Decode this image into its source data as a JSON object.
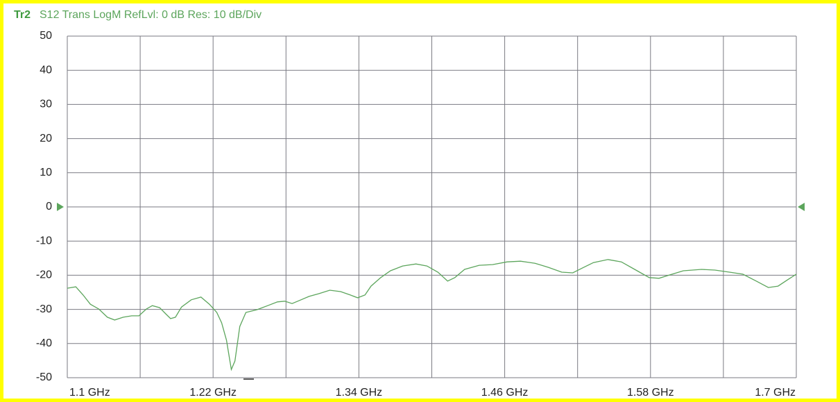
{
  "chart_data": {
    "type": "line",
    "trace_name": "Tr2",
    "title": "S12 Trans LogM RefLvl: 0  dB Res: 10  dB/Div",
    "x": [
      1.1,
      1.107,
      1.113,
      1.119,
      1.126,
      1.133,
      1.139,
      1.146,
      1.153,
      1.159,
      1.165,
      1.17,
      1.176,
      1.181,
      1.185,
      1.189,
      1.194,
      1.202,
      1.21,
      1.217,
      1.223,
      1.227,
      1.231,
      1.235,
      1.238,
      1.242,
      1.247,
      1.256,
      1.265,
      1.273,
      1.279,
      1.285,
      1.291,
      1.299,
      1.307,
      1.316,
      1.325,
      1.333,
      1.339,
      1.345,
      1.35,
      1.358,
      1.366,
      1.376,
      1.387,
      1.396,
      1.405,
      1.413,
      1.419,
      1.427,
      1.439,
      1.45,
      1.462,
      1.473,
      1.485,
      1.496,
      1.507,
      1.516,
      1.525,
      1.533,
      1.545,
      1.556,
      1.567,
      1.579,
      1.587,
      1.596,
      1.607,
      1.622,
      1.633,
      1.645,
      1.656,
      1.667,
      1.677,
      1.685,
      1.693,
      1.7
    ],
    "series": [
      {
        "name": "S12",
        "color": "#5ca55c",
        "values": [
          -23.8,
          -23.4,
          -25.8,
          -28.5,
          -29.9,
          -32.3,
          -33.1,
          -32.3,
          -31.9,
          -31.9,
          -29.9,
          -28.9,
          -29.5,
          -31.3,
          -32.7,
          -32.3,
          -29.3,
          -27.2,
          -26.4,
          -28.5,
          -30.9,
          -33.9,
          -39.0,
          -47.6,
          -45.1,
          -35.0,
          -30.9,
          -30.1,
          -28.9,
          -27.8,
          -27.6,
          -28.3,
          -27.4,
          -26.2,
          -25.4,
          -24.4,
          -24.8,
          -25.8,
          -26.6,
          -25.8,
          -23.2,
          -20.7,
          -18.7,
          -17.3,
          -16.7,
          -17.3,
          -19.1,
          -21.7,
          -20.7,
          -18.3,
          -17.1,
          -16.9,
          -16.1,
          -15.9,
          -16.5,
          -17.7,
          -19.1,
          -19.3,
          -17.7,
          -16.3,
          -15.4,
          -16.1,
          -18.3,
          -20.7,
          -20.9,
          -19.9,
          -18.7,
          -18.3,
          -18.5,
          -19.1,
          -19.7,
          -21.7,
          -23.6,
          -23.2,
          -21.3,
          -19.7
        ]
      }
    ],
    "xlim": [
      1.1,
      1.7
    ],
    "xticks": [
      {
        "value": 1.1,
        "label": "1.1 GHz"
      },
      {
        "value": 1.22,
        "label": "1.22 GHz"
      },
      {
        "value": 1.34,
        "label": "1.34 GHz"
      },
      {
        "value": 1.46,
        "label": "1.46 GHz"
      },
      {
        "value": 1.58,
        "label": "1.58 GHz"
      },
      {
        "value": 1.7,
        "label": "1.7 GHz"
      }
    ],
    "xgrid_step": 0.06,
    "ylim": [
      -50,
      50
    ],
    "yticks": [
      50,
      40,
      30,
      20,
      10,
      0,
      -10,
      -20,
      -30,
      -40,
      -50
    ],
    "grid": true
  }
}
